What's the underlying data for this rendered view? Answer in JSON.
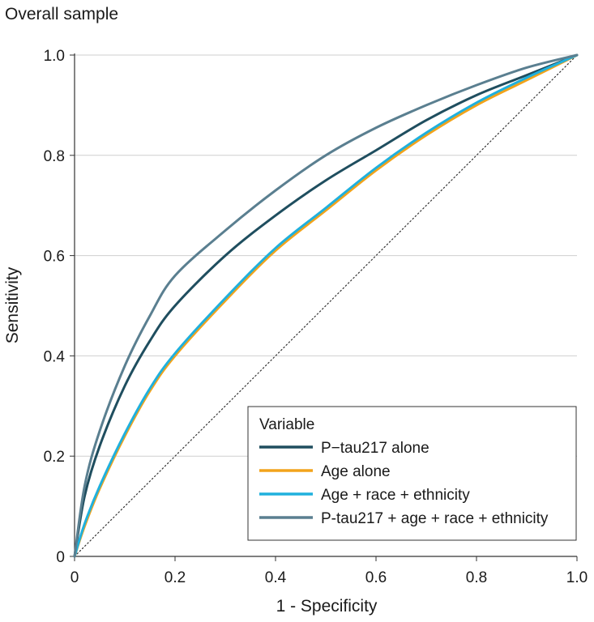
{
  "chart_data": {
    "type": "line",
    "title": "Overall sample",
    "xlabel": "1 - Specificity",
    "ylabel": "Sensitivity",
    "xlim": [
      0,
      1
    ],
    "ylim": [
      0,
      1
    ],
    "x_ticks": [
      "0",
      "0.2",
      "0.4",
      "0.6",
      "0.8",
      "1.0"
    ],
    "y_ticks": [
      "0",
      "0.2",
      "0.4",
      "0.6",
      "0.8",
      "1.0"
    ],
    "grid": "horizontal",
    "legend": {
      "title": "Variable",
      "placement": "bottom-right"
    },
    "series": [
      {
        "name": "P−tau217 alone",
        "color": "#1f4e5f",
        "x": [
          0,
          0.02,
          0.05,
          0.1,
          0.15,
          0.2,
          0.3,
          0.4,
          0.5,
          0.6,
          0.7,
          0.8,
          0.9,
          1.0
        ],
        "y": [
          0,
          0.12,
          0.22,
          0.34,
          0.43,
          0.5,
          0.6,
          0.68,
          0.75,
          0.81,
          0.87,
          0.92,
          0.96,
          1.0
        ]
      },
      {
        "name": "Age alone",
        "color": "#f2a31b",
        "x": [
          0,
          0.02,
          0.05,
          0.1,
          0.15,
          0.2,
          0.3,
          0.4,
          0.5,
          0.6,
          0.7,
          0.8,
          0.9,
          1.0
        ],
        "y": [
          0,
          0.06,
          0.135,
          0.24,
          0.33,
          0.4,
          0.51,
          0.61,
          0.69,
          0.77,
          0.84,
          0.9,
          0.95,
          1.0
        ]
      },
      {
        "name": "Age + race + ethnicity",
        "color": "#1fb0dd",
        "x": [
          0,
          0.02,
          0.05,
          0.1,
          0.15,
          0.2,
          0.3,
          0.4,
          0.5,
          0.6,
          0.7,
          0.8,
          0.9,
          1.0
        ],
        "y": [
          0,
          0.065,
          0.14,
          0.245,
          0.335,
          0.405,
          0.515,
          0.615,
          0.695,
          0.775,
          0.845,
          0.905,
          0.955,
          1.0
        ]
      },
      {
        "name": "P-tau217 + age + race + ethnicity",
        "color": "#5a7f90",
        "x": [
          0,
          0.02,
          0.05,
          0.1,
          0.15,
          0.2,
          0.3,
          0.4,
          0.5,
          0.6,
          0.7,
          0.8,
          0.9,
          1.0
        ],
        "y": [
          0,
          0.14,
          0.25,
          0.38,
          0.48,
          0.56,
          0.65,
          0.73,
          0.8,
          0.855,
          0.9,
          0.94,
          0.975,
          1.0
        ]
      }
    ],
    "reference_line": {
      "x": [
        0,
        1
      ],
      "y": [
        0,
        1
      ],
      "style": "dotted"
    }
  }
}
